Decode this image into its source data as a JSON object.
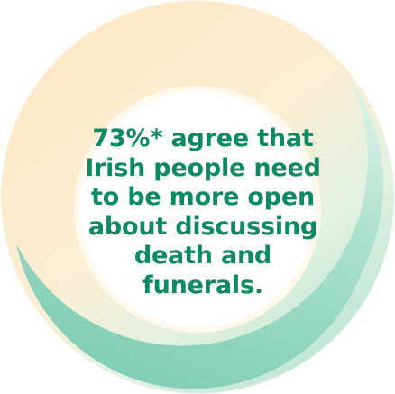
{
  "statistic": {
    "lines": [
      "73%* agree that",
      "Irish people need",
      "to be more open",
      "about discussing",
      "death and",
      "funerals."
    ]
  },
  "colors": {
    "text": "#0b8a63",
    "ring_peach": "#fbe3bb",
    "ring_mint": "#a8e0cf",
    "ring_teal": "#7dcdb4",
    "background": "#ffffff"
  }
}
